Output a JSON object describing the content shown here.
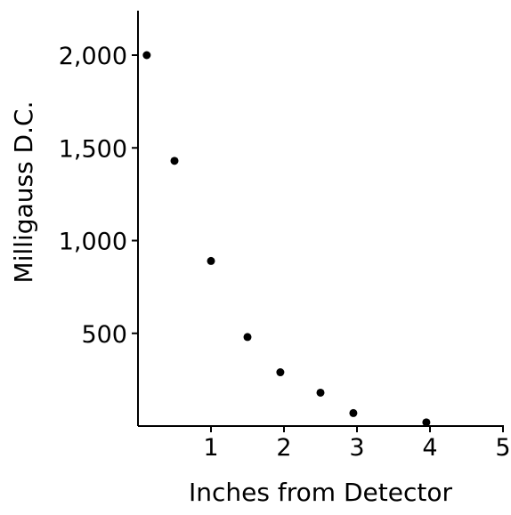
{
  "chart_data": {
    "type": "scatter",
    "title": "",
    "xlabel": "Inches from Detector",
    "ylabel": "Milligauss D.C.",
    "xlim": [
      0,
      5
    ],
    "ylim": [
      0,
      2000
    ],
    "xticks": [
      1,
      2,
      3,
      4,
      5
    ],
    "xtick_labels": [
      "1",
      "2",
      "3",
      "4",
      "5"
    ],
    "yticks": [
      500,
      1000,
      1500,
      2000
    ],
    "ytick_labels": [
      "500",
      "1,000",
      "1,500",
      "2,000"
    ],
    "grid": false,
    "legend": "none",
    "color": "#000000",
    "points": [
      {
        "x": 0.12,
        "y": 2000
      },
      {
        "x": 0.5,
        "y": 1430
      },
      {
        "x": 1.0,
        "y": 890
      },
      {
        "x": 1.5,
        "y": 480
      },
      {
        "x": 1.95,
        "y": 290
      },
      {
        "x": 2.5,
        "y": 180
      },
      {
        "x": 2.95,
        "y": 70
      },
      {
        "x": 3.95,
        "y": 20
      }
    ]
  }
}
